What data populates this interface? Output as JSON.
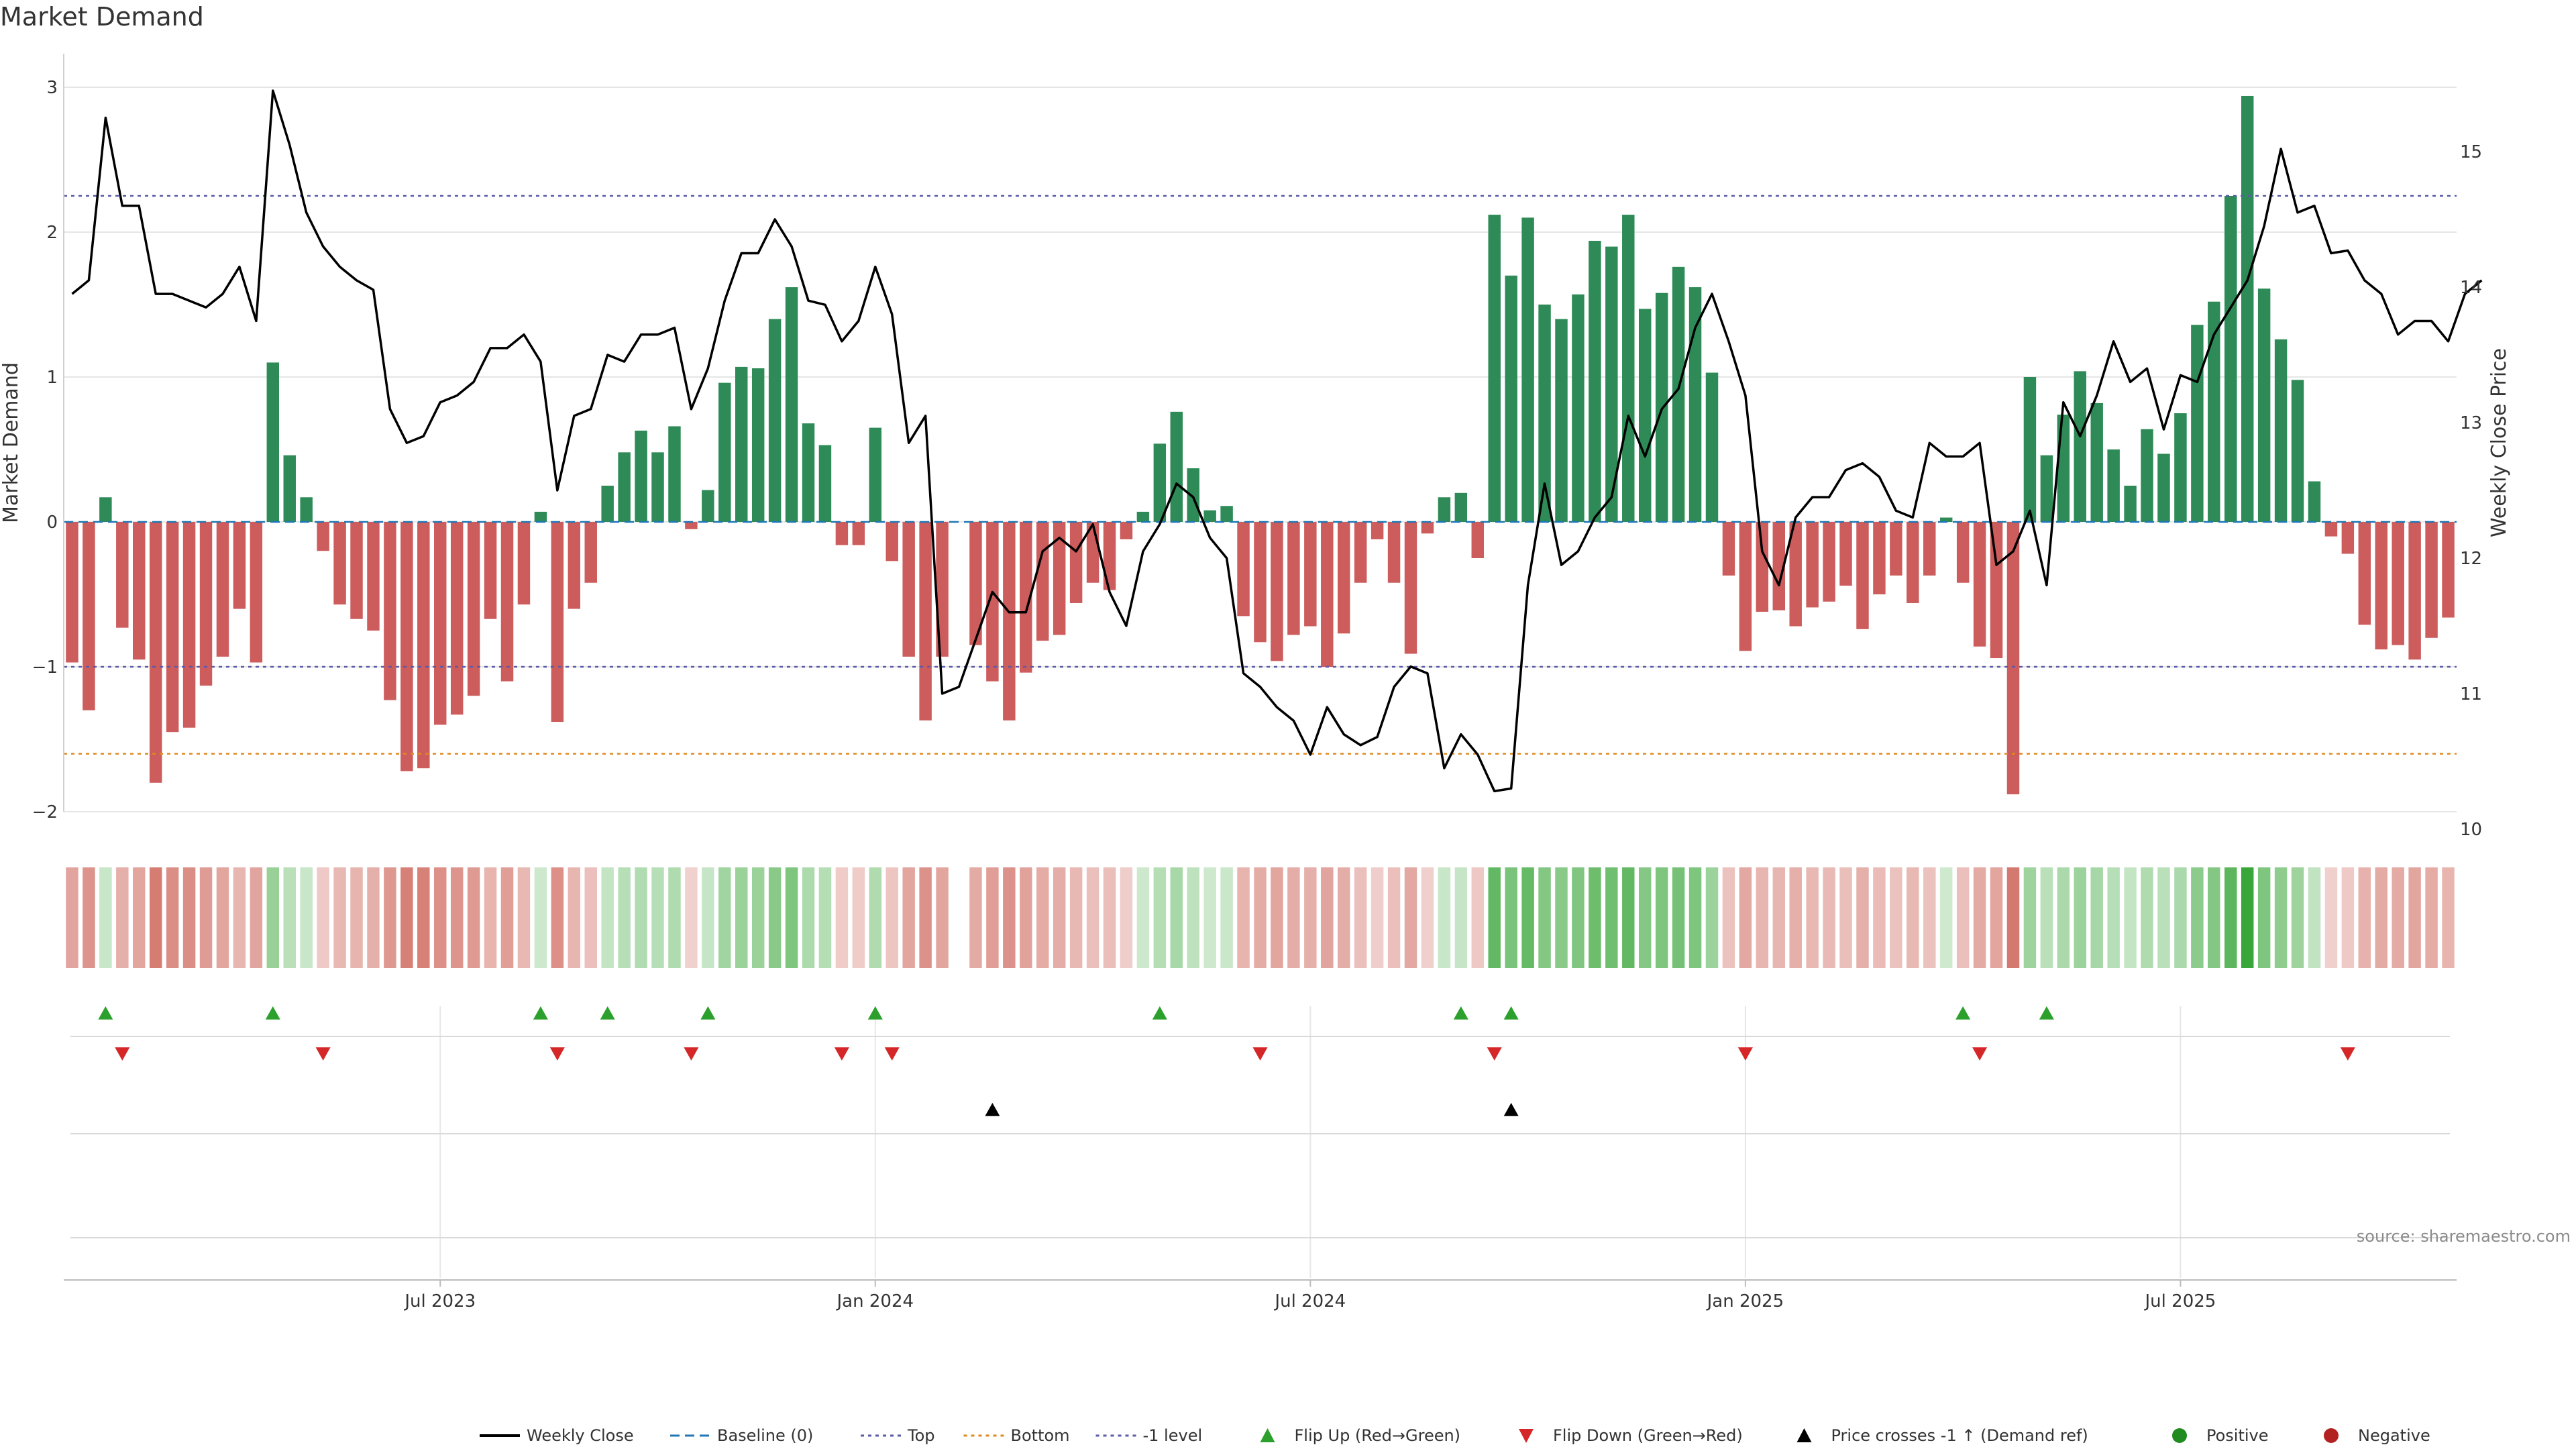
{
  "chart_data": {
    "type": "bar",
    "title": "Market Demand",
    "ylabel_left": "Market Demand",
    "ylabel_right": "Weekly Close Price",
    "ylim_left": [
      -2.3,
      3.2
    ],
    "ylim_right": [
      10,
      15.5
    ],
    "yticks_left": [
      {
        "v": 3,
        "label": "3"
      },
      {
        "v": 2,
        "label": "2"
      },
      {
        "v": 1,
        "label": "1"
      },
      {
        "v": 0,
        "label": "0"
      },
      {
        "v": -1,
        "label": "−1"
      },
      {
        "v": -2,
        "label": "−2"
      }
    ],
    "yticks_right": [
      {
        "v": 15,
        "label": "15"
      },
      {
        "v": 14,
        "label": "14"
      },
      {
        "v": 13,
        "label": "13"
      },
      {
        "v": 12,
        "label": "12"
      },
      {
        "v": 11,
        "label": "11"
      },
      {
        "v": 10,
        "label": "10"
      }
    ],
    "xticks": [
      {
        "i": 22,
        "label": "Jul 2023"
      },
      {
        "i": 48,
        "label": "Jan 2024"
      },
      {
        "i": 74,
        "label": "Jul 2024"
      },
      {
        "i": 100,
        "label": "Jan 2025"
      },
      {
        "i": 126,
        "label": "Jul 2025"
      }
    ],
    "reference_lines": {
      "top": 2.25,
      "bottom": -1.6,
      "minus1": -1.0,
      "baseline": 0
    },
    "demand": [
      -0.97,
      -1.3,
      0.17,
      -0.73,
      -0.95,
      -1.8,
      -1.45,
      -1.42,
      -1.13,
      -0.93,
      -0.6,
      -0.97,
      1.1,
      0.46,
      0.17,
      -0.2,
      -0.57,
      -0.67,
      -0.75,
      -1.23,
      -1.72,
      -1.7,
      -1.4,
      -1.33,
      -1.2,
      -0.67,
      -1.1,
      -0.57,
      0.07,
      -1.38,
      -0.6,
      -0.42,
      0.25,
      0.48,
      0.63,
      0.48,
      0.66,
      -0.05,
      0.22,
      0.96,
      1.07,
      1.06,
      1.4,
      1.62,
      0.68,
      0.53,
      -0.16,
      -0.16,
      0.65,
      -0.27,
      -0.93,
      -1.37,
      -0.93,
      null,
      -0.85,
      -1.1,
      -1.37,
      -1.04,
      -0.82,
      -0.78,
      -0.56,
      -0.42,
      -0.47,
      -0.12,
      0.07,
      0.54,
      0.76,
      0.37,
      0.08,
      0.11,
      -0.65,
      -0.83,
      -0.96,
      -0.78,
      -0.72,
      -1.0,
      -0.77,
      -0.42,
      -0.12,
      -0.42,
      -0.91,
      -0.08,
      0.17,
      0.2,
      -0.25,
      2.12,
      1.7,
      2.1,
      1.5,
      1.4,
      1.57,
      1.94,
      1.9,
      2.12,
      1.47,
      1.58,
      1.76,
      1.62,
      1.03,
      -0.37,
      -0.89,
      -0.62,
      -0.61,
      -0.72,
      -0.59,
      -0.55,
      -0.44,
      -0.74,
      -0.5,
      -0.37,
      -0.56,
      -0.37,
      0.03,
      -0.42,
      -0.86,
      -0.94,
      -1.88,
      1.0,
      0.46,
      0.74,
      1.04,
      0.82,
      0.5,
      0.25,
      0.64,
      0.47,
      0.75,
      1.36,
      1.52,
      2.25,
      2.94,
      1.61,
      1.26,
      0.98,
      0.28,
      -0.1,
      -0.22,
      -0.71,
      -0.88,
      -0.85,
      -0.95,
      -0.8,
      -0.66
    ],
    "weekly_close": [
      13.95,
      14.05,
      15.25,
      14.6,
      14.6,
      13.95,
      13.95,
      13.9,
      13.85,
      13.95,
      14.15,
      13.75,
      15.45,
      15.05,
      14.55,
      14.3,
      14.15,
      14.05,
      13.98,
      13.1,
      12.85,
      12.9,
      13.15,
      13.2,
      13.3,
      13.55,
      13.55,
      13.65,
      13.45,
      12.5,
      13.05,
      13.1,
      13.5,
      13.45,
      13.65,
      13.65,
      13.7,
      13.1,
      13.4,
      13.9,
      14.25,
      14.25,
      14.5,
      14.3,
      13.9,
      13.87,
      13.6,
      13.75,
      14.15,
      13.8,
      12.85,
      13.05,
      11.0,
      11.05,
      11.4,
      11.75,
      11.6,
      11.6,
      12.05,
      12.15,
      12.05,
      12.25,
      11.75,
      11.5,
      12.05,
      12.25,
      12.55,
      12.45,
      12.15,
      12.0,
      11.15,
      11.05,
      10.9,
      10.8,
      10.55,
      10.9,
      10.7,
      10.62,
      10.68,
      11.05,
      11.2,
      11.15,
      10.45,
      10.7,
      10.55,
      10.28,
      10.3,
      11.8,
      12.55,
      11.95,
      12.05,
      12.3,
      12.45,
      13.05,
      12.75,
      13.1,
      13.25,
      13.7,
      13.95,
      13.6,
      13.2,
      12.05,
      11.8,
      12.3,
      12.45,
      12.45,
      12.65,
      12.7,
      12.6,
      12.35,
      12.3,
      12.85,
      12.75,
      12.75,
      12.85,
      11.95,
      12.05,
      12.35,
      11.8,
      13.15,
      12.9,
      13.2,
      13.6,
      13.3,
      13.4,
      12.95,
      13.35,
      13.3,
      13.65,
      13.85,
      14.05,
      14.45,
      15.02,
      14.55,
      14.6,
      14.25,
      14.27,
      14.05,
      13.95,
      13.65,
      13.75,
      13.75,
      13.6,
      13.95,
      14.05
    ],
    "flip_up_idx": [
      2,
      12,
      28,
      32,
      38,
      48,
      65,
      83,
      86,
      113,
      118
    ],
    "flip_down_idx": [
      3,
      15,
      29,
      37,
      46,
      49,
      71,
      85,
      100,
      114,
      136
    ],
    "price_cross_idx": [
      55,
      86
    ],
    "colors": {
      "positive": "#2e8b57",
      "negative": "#cd5c5c",
      "weekly_close": "#000000",
      "baseline": "#1f77b4",
      "top": "#5a5aa8",
      "bottom": "#e08a1e",
      "minus1": "#5a5aa8",
      "flip_up": "#2ca02c",
      "flip_down": "#d62728",
      "price_cross": "#000000",
      "positive_dot": "#228b22",
      "negative_dot": "#b22222",
      "grid": "#e6e6e6",
      "axis": "#d0d0d0"
    },
    "legend": [
      {
        "key": "weekly_close",
        "label": "Weekly Close",
        "marker": "line"
      },
      {
        "key": "baseline",
        "label": "Baseline (0)",
        "marker": "dash"
      },
      {
        "key": "top",
        "label": "Top",
        "marker": "dot"
      },
      {
        "key": "bottom",
        "label": "Bottom",
        "marker": "dot"
      },
      {
        "key": "minus1",
        "label": "-1 level",
        "marker": "dot"
      },
      {
        "key": "flip_up",
        "label": "Flip Up (Red→Green)",
        "marker": "tri-up"
      },
      {
        "key": "flip_down",
        "label": "Flip Down (Green→Red)",
        "marker": "tri-down"
      },
      {
        "key": "price_cross",
        "label": "Price crosses -1 ↑ (Demand ref)",
        "marker": "tri-up"
      },
      {
        "key": "positive_dot",
        "label": "Positive",
        "marker": "circle"
      },
      {
        "key": "negative_dot",
        "label": "Negative",
        "marker": "circle"
      }
    ],
    "source": "source: sharemaestro.com"
  }
}
